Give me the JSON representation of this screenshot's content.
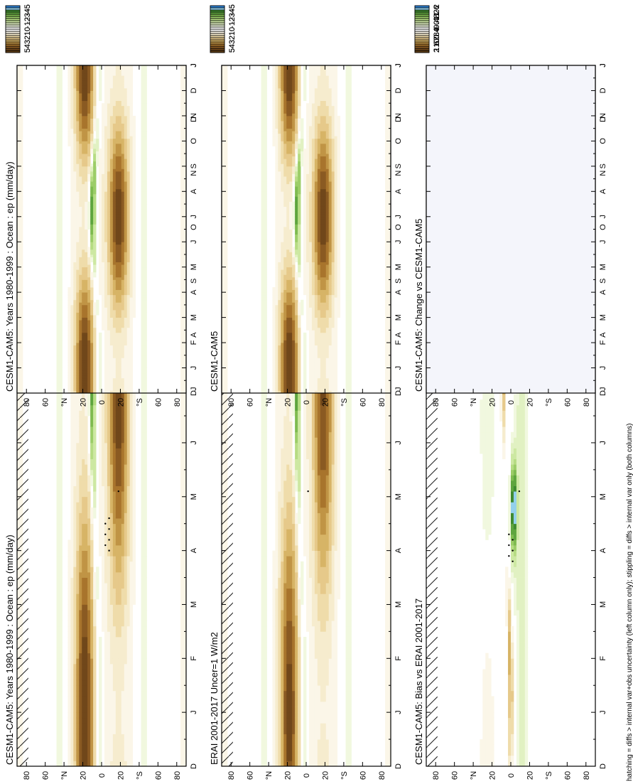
{
  "page": {
    "footer": "hatching = diffs > internal var+obs uncertainty (left column only); stippling = diffs > internal var only (both columns)"
  },
  "month_labels": [
    "D",
    "J",
    "F",
    "M",
    "A",
    "M",
    "J",
    "J",
    "A",
    "S",
    "O",
    "N",
    "D",
    "J"
  ],
  "lat_labels": [
    "80",
    "60",
    "°N",
    "20",
    "0",
    "20",
    "°S",
    "60",
    "80"
  ],
  "colorbars": {
    "fields": {
      "labels": [
        "5",
        "4",
        "3",
        "2",
        "1",
        "0",
        "-1",
        "-2",
        "-3",
        "-4",
        "-5"
      ],
      "colors": [
        "#5a3a14",
        "#70471a",
        "#8a5a22",
        "#a8742c",
        "#c09445",
        "#d7b466",
        "#e6c98a",
        "#efdcaa",
        "#f6ecce",
        "#fbf6e8",
        "#ffffff",
        "#ffffff",
        "#f1f8df",
        "#e1f1c2",
        "#cde8a2",
        "#b6dc83",
        "#9ccd68",
        "#7fbb50",
        "#5ea53e",
        "#3f8b30",
        "#93d0ec",
        "#2b7fd0"
      ]
    },
    "diffs": {
      "labels": [
        "2",
        "1.6",
        "1.2",
        "0.8",
        "0.4",
        "0",
        "-0.4",
        "-0.8",
        "-1.2",
        "-1.6",
        "-2"
      ],
      "colors": [
        "#5a3a14",
        "#70471a",
        "#8a5a22",
        "#a8742c",
        "#c09445",
        "#d7b466",
        "#e6c98a",
        "#efdcaa",
        "#f6ecce",
        "#fbf6e8",
        "#ffffff",
        "#ffffff",
        "#f1f8df",
        "#e1f1c2",
        "#cde8a2",
        "#b6dc83",
        "#9ccd68",
        "#7fbb50",
        "#5ea53e",
        "#3f8b30",
        "#93d0ec",
        "#2b7fd0"
      ]
    }
  },
  "panels": [
    {
      "id": "model-ll",
      "title": "CESM1-CAM5: Years 1980-1999 : Ocean : ep (mm/day)",
      "kind": "field",
      "hatch": true,
      "stipple": [
        [
          4.0,
          -8
        ],
        [
          4.2,
          -8
        ],
        [
          4.4,
          -8
        ],
        [
          4.6,
          -8
        ],
        [
          4.1,
          -4
        ],
        [
          4.3,
          -4
        ],
        [
          4.5,
          -4
        ],
        [
          5.1,
          -18
        ],
        [
          9.4,
          -12
        ]
      ],
      "colorbar": "fields"
    },
    {
      "id": "obs",
      "title": "ERAI 2001-2017 Uncer=1 W/m2",
      "kind": "field",
      "hatch": true,
      "stipple": [
        [
          5.1,
          -2
        ]
      ],
      "colorbar": "fields"
    },
    {
      "id": "bias",
      "title": "CESM1-CAM5: Bias vs ERAI 2001-2017",
      "kind": "bias",
      "hatch": true,
      "stipple": [
        [
          3.8,
          -2
        ],
        [
          4.0,
          -2
        ],
        [
          4.2,
          -2
        ],
        [
          3.9,
          2
        ],
        [
          4.1,
          2
        ],
        [
          4.3,
          2
        ],
        [
          5.1,
          -9
        ]
      ],
      "colorbar": "diffs"
    },
    {
      "id": "model-lr",
      "title": "CESM1-CAM5: Years 1980-1999 : Ocean : ep (mm/day)",
      "kind": "field",
      "hatch": false,
      "stipple": [],
      "colorbar": "fields"
    },
    {
      "id": "model-r",
      "title": "CESM1-CAM5",
      "kind": "field",
      "hatch": false,
      "stipple": [],
      "colorbar": "fields"
    },
    {
      "id": "change",
      "title": "CESM1-CAM5: Change vs CESM1-CAM5",
      "kind": "blank",
      "hatch": false,
      "stipple": [],
      "colorbar": "diffs"
    }
  ],
  "chart_data": {
    "type": "heatmap",
    "variable": "ep (mm/day)",
    "x": {
      "label": "month",
      "ticks": [
        "D",
        "J",
        "F",
        "M",
        "A",
        "M",
        "J",
        "J",
        "A",
        "S",
        "O",
        "N",
        "D",
        "J"
      ]
    },
    "y": {
      "label": "latitude",
      "ticks": [
        "80",
        "60",
        "°N",
        "20",
        "0",
        "20",
        "°S",
        "60",
        "80"
      ],
      "range": [
        -90,
        90
      ]
    },
    "value_range_fields": [
      -5,
      5
    ],
    "value_range_diffs": [
      -2,
      2
    ],
    "series": [
      {
        "name": "CESM1-CAM5: Years 1980-1999 : Ocean : ep (mm/day)",
        "itcz_evap_min": [
          -4.8,
          -1.0,
          -0.5,
          0.2,
          0.8,
          -1.5,
          -4.5,
          -5.0,
          -5.0,
          -4.8,
          -4.2,
          -2.0,
          -4.8
        ],
        "north_subtropic_max": 4.5,
        "south_subtropic_max": 4.5
      },
      {
        "name": "ERAI 2001-2017 Uncer=1 W/m2",
        "itcz_evap_min": [
          -4.5,
          -1.2,
          -0.6,
          0.2,
          0.6,
          -1.8,
          -4.6,
          -5.0,
          -5.0,
          -4.8,
          -4.4,
          -3.0,
          -4.5
        ],
        "north_subtropic_max": 4.5,
        "south_subtropic_max": 4.2
      },
      {
        "name": "CESM1-CAM5: Bias vs ERAI 2001-2017",
        "equatorial_bias_min": -2.0,
        "equatorial_bias_max": 1.2
      }
    ]
  }
}
